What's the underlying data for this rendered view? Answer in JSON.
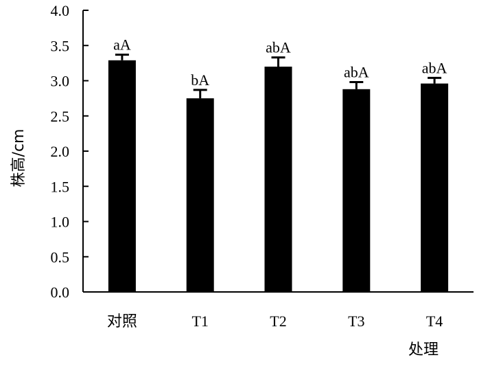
{
  "chart_data": {
    "type": "bar",
    "xlabel": "处理",
    "ylabel": "株高/cm",
    "ylim": [
      0,
      4.0
    ],
    "yticks": [
      "0.0",
      "0.5",
      "1.0",
      "1.5",
      "2.0",
      "2.5",
      "3.0",
      "3.5",
      "4.0"
    ],
    "categories": [
      "对照",
      "T1",
      "T2",
      "T3",
      "T4"
    ],
    "values": [
      3.29,
      2.75,
      3.2,
      2.88,
      2.96
    ],
    "errors": [
      0.08,
      0.12,
      0.13,
      0.1,
      0.08
    ],
    "significance": [
      "aA",
      "bA",
      "abA",
      "abA",
      "abA"
    ],
    "bar_color": "#000000",
    "grid": false
  }
}
